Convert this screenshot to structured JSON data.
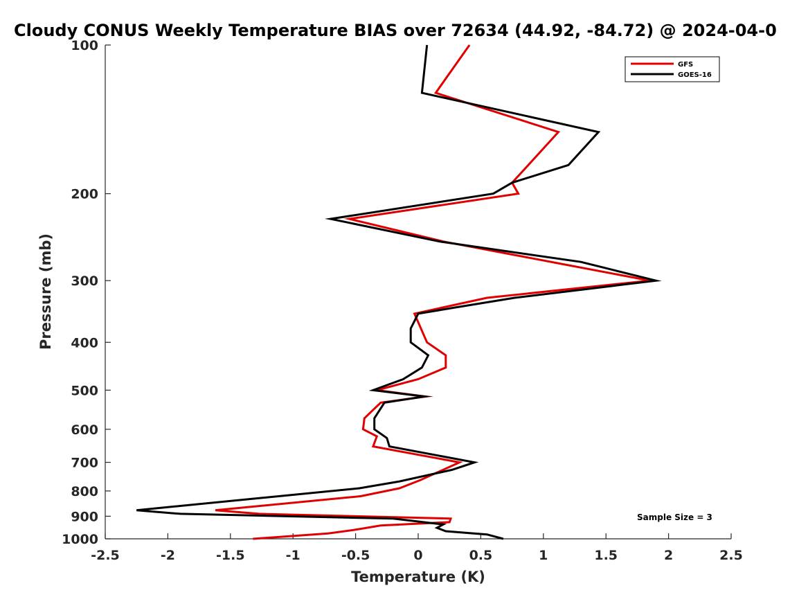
{
  "chart_data": {
    "type": "line",
    "title": "Cloudy CONUS Weekly Temperature BIAS over 72634 (44.92, -84.72) @ 2024-04-0",
    "xlabel": "Temperature (K)",
    "ylabel": "Pressure (mb)",
    "xlim": [
      -2.5,
      2.5
    ],
    "ylim": [
      100,
      1000
    ],
    "y_scale": "log",
    "y_reversed": true,
    "x_ticks": [
      -2.5,
      -2,
      -1.5,
      -1,
      -0.5,
      0,
      0.5,
      1,
      1.5,
      2,
      2.5
    ],
    "x_tick_labels": [
      "-2.5",
      "-2",
      "-1.5",
      "-1",
      "-0.5",
      "0",
      "0.5",
      "1",
      "1.5",
      "2",
      "2.5"
    ],
    "y_ticks": [
      100,
      200,
      300,
      400,
      500,
      600,
      700,
      800,
      900,
      1000
    ],
    "y_tick_labels": [
      "100",
      "200",
      "300",
      "400",
      "500",
      "600",
      "700",
      "800",
      "900",
      "1000"
    ],
    "grid": false,
    "legend_position": "top-right",
    "annotation": "Sample Size = 3",
    "series": [
      {
        "name": "GFS",
        "color": "#e00000",
        "points": [
          {
            "x": 0.41,
            "y": 100
          },
          {
            "x": 0.14,
            "y": 125
          },
          {
            "x": 1.12,
            "y": 150
          },
          {
            "x": 0.88,
            "y": 175
          },
          {
            "x": 0.75,
            "y": 190
          },
          {
            "x": 0.8,
            "y": 200
          },
          {
            "x": -0.55,
            "y": 225
          },
          {
            "x": 0.2,
            "y": 250
          },
          {
            "x": 1.85,
            "y": 300
          },
          {
            "x": 0.55,
            "y": 325
          },
          {
            "x": -0.03,
            "y": 350
          },
          {
            "x": 0.07,
            "y": 400
          },
          {
            "x": 0.22,
            "y": 425
          },
          {
            "x": 0.22,
            "y": 450
          },
          {
            "x": 0.0,
            "y": 475
          },
          {
            "x": -0.33,
            "y": 500
          },
          {
            "x": 0.06,
            "y": 515
          },
          {
            "x": -0.3,
            "y": 530
          },
          {
            "x": -0.43,
            "y": 570
          },
          {
            "x": -0.44,
            "y": 600
          },
          {
            "x": -0.33,
            "y": 620
          },
          {
            "x": -0.36,
            "y": 650
          },
          {
            "x": 0.33,
            "y": 700
          },
          {
            "x": 0.02,
            "y": 760
          },
          {
            "x": -0.15,
            "y": 790
          },
          {
            "x": -0.46,
            "y": 820
          },
          {
            "x": -1.62,
            "y": 875
          },
          {
            "x": -1.27,
            "y": 890
          },
          {
            "x": 0.26,
            "y": 910
          },
          {
            "x": 0.25,
            "y": 925
          },
          {
            "x": -0.3,
            "y": 940
          },
          {
            "x": -0.52,
            "y": 960
          },
          {
            "x": -0.72,
            "y": 975
          },
          {
            "x": -1.32,
            "y": 1000
          }
        ]
      },
      {
        "name": "GOES-16",
        "color": "#000000",
        "points": [
          {
            "x": 0.07,
            "y": 100
          },
          {
            "x": 0.03,
            "y": 125
          },
          {
            "x": 1.44,
            "y": 150
          },
          {
            "x": 1.2,
            "y": 175
          },
          {
            "x": 0.75,
            "y": 190
          },
          {
            "x": 0.6,
            "y": 200
          },
          {
            "x": -0.7,
            "y": 225
          },
          {
            "x": 0.17,
            "y": 250
          },
          {
            "x": 1.3,
            "y": 275
          },
          {
            "x": 1.9,
            "y": 300
          },
          {
            "x": 0.77,
            "y": 325
          },
          {
            "x": 0.3,
            "y": 340
          },
          {
            "x": 0.0,
            "y": 350
          },
          {
            "x": -0.06,
            "y": 375
          },
          {
            "x": -0.06,
            "y": 400
          },
          {
            "x": 0.08,
            "y": 425
          },
          {
            "x": 0.03,
            "y": 450
          },
          {
            "x": -0.12,
            "y": 475
          },
          {
            "x": -0.36,
            "y": 500
          },
          {
            "x": 0.05,
            "y": 515
          },
          {
            "x": -0.27,
            "y": 530
          },
          {
            "x": -0.35,
            "y": 570
          },
          {
            "x": -0.35,
            "y": 600
          },
          {
            "x": -0.25,
            "y": 625
          },
          {
            "x": -0.23,
            "y": 650
          },
          {
            "x": 0.45,
            "y": 700
          },
          {
            "x": 0.27,
            "y": 725
          },
          {
            "x": -0.15,
            "y": 765
          },
          {
            "x": -0.47,
            "y": 790
          },
          {
            "x": -2.25,
            "y": 875
          },
          {
            "x": -1.9,
            "y": 890
          },
          {
            "x": -0.2,
            "y": 910
          },
          {
            "x": 0.2,
            "y": 935
          },
          {
            "x": 0.15,
            "y": 950
          },
          {
            "x": 0.22,
            "y": 965
          },
          {
            "x": 0.55,
            "y": 980
          },
          {
            "x": 0.68,
            "y": 1000
          }
        ]
      }
    ]
  }
}
